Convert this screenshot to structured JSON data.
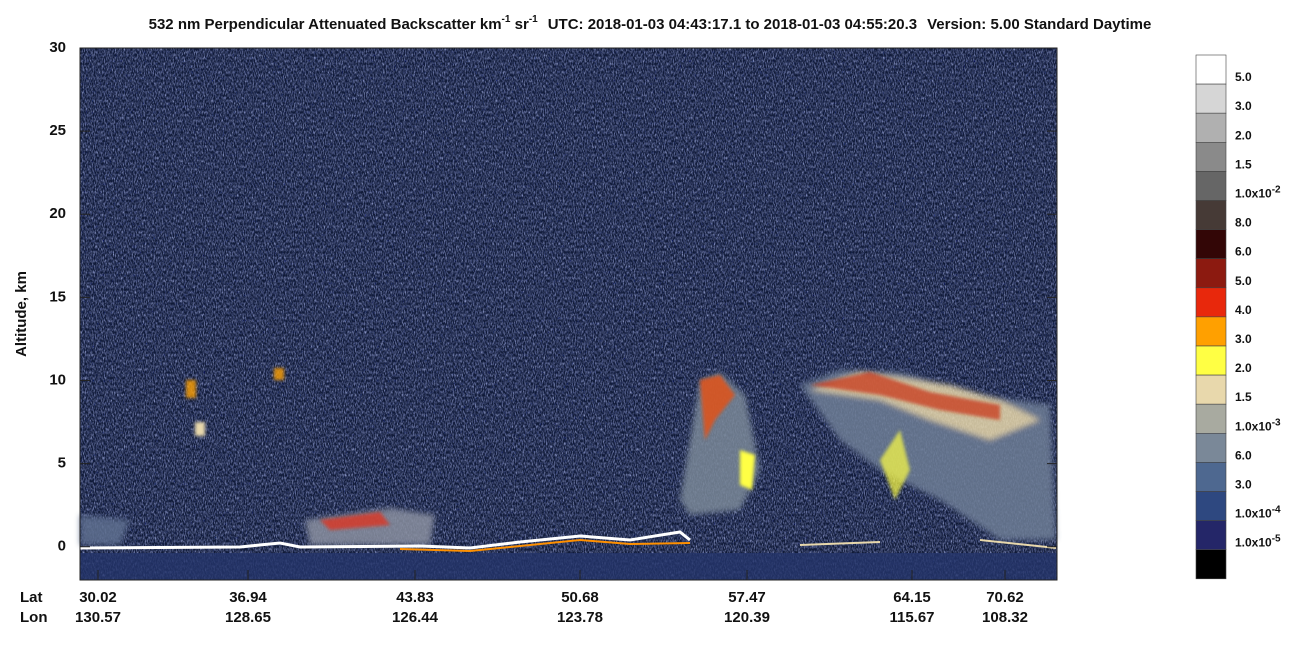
{
  "chart_data": {
    "type": "heatmap",
    "title": {
      "part1": "532 nm Perpendicular Attenuated Backscatter km",
      "sup1": "-1",
      "part2": " sr",
      "sup2": "-1",
      "part3": "UTC: 2018-01-03 04:43:17.1 to 2018-01-03 04:55:20.3",
      "part4": "Version: 5.00 Standard Daytime"
    },
    "y_label": "Altitude, km",
    "ylim": [
      -2,
      30
    ],
    "yticks": [
      0,
      5,
      10,
      15,
      20,
      25,
      30
    ],
    "x_rows": [
      "Lat",
      "Lon"
    ],
    "lat": [
      "30.02",
      "36.94",
      "43.83",
      "50.68",
      "57.47",
      "64.15",
      "70.62"
    ],
    "lon": [
      "130.57",
      "128.65",
      "126.44",
      "123.78",
      "120.39",
      "115.67",
      "108.32"
    ],
    "color_bar": {
      "colors": [
        "#ffffff",
        "#d6d6d6",
        "#b0b0b0",
        "#8a8a8a",
        "#666666",
        "#463a36",
        "#330606",
        "#8c1a10",
        "#e8280c",
        "#ffa000",
        "#ffff44",
        "#e8d8ac",
        "#a8aaa0",
        "#7a8898",
        "#4e6890",
        "#2e4880",
        "#242668",
        "#000000"
      ],
      "levels": [
        {
          "label": "5.0"
        },
        {
          "label": "3.0"
        },
        {
          "label": "2.0"
        },
        {
          "label": "1.5"
        },
        {
          "label": "1.0x10",
          "exponent": "-2"
        },
        {
          "label": "8.0"
        },
        {
          "label": "6.0"
        },
        {
          "label": "5.0"
        },
        {
          "label": "4.0"
        },
        {
          "label": "3.0"
        },
        {
          "label": "2.0"
        },
        {
          "label": "1.5"
        },
        {
          "label": "1.0x10",
          "exponent": "-3"
        },
        {
          "label": "6.0"
        },
        {
          "label": "3.0"
        },
        {
          "label": "1.0x10",
          "exponent": "-4"
        },
        {
          "label": "1.0x10",
          "exponent": "-5"
        }
      ]
    }
  }
}
